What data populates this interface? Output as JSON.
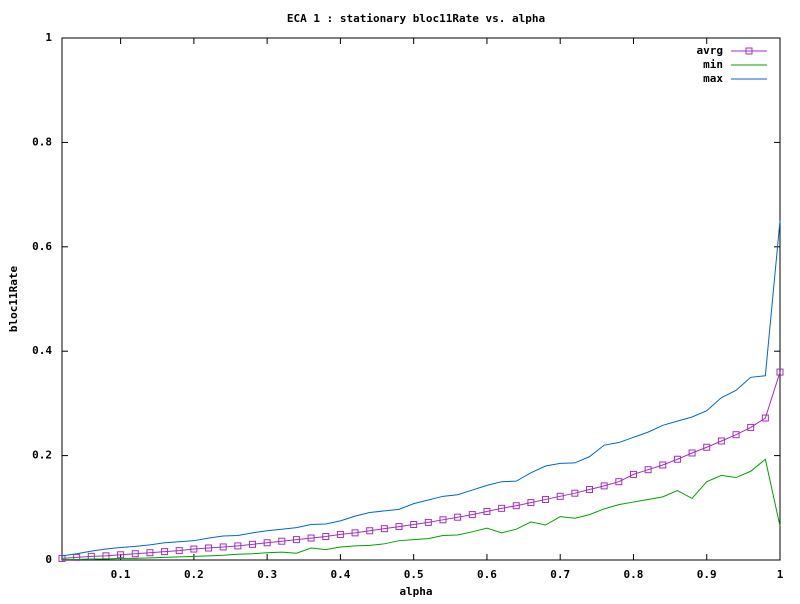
{
  "chart_data": {
    "type": "line",
    "title": "ECA 1 : stationary bloc11Rate vs. alpha",
    "x_label": "alpha",
    "y_label": "bloc11Rate",
    "x": [
      0.02,
      0.04,
      0.06,
      0.08,
      0.1,
      0.12,
      0.14,
      0.16,
      0.18,
      0.2,
      0.22,
      0.24,
      0.26,
      0.28,
      0.3,
      0.32,
      0.34,
      0.36,
      0.38,
      0.4,
      0.42,
      0.44,
      0.46,
      0.48,
      0.5,
      0.52,
      0.54,
      0.56,
      0.58,
      0.6,
      0.62,
      0.64,
      0.66,
      0.68,
      0.7,
      0.72,
      0.74,
      0.76,
      0.78,
      0.8,
      0.82,
      0.84,
      0.86,
      0.88,
      0.9,
      0.92,
      0.94,
      0.96,
      0.98,
      1
    ],
    "series": [
      {
        "name": "avrg",
        "color": "#a030c0",
        "marker": "square",
        "values": [
          0.003,
          0.005,
          0.007,
          0.008,
          0.01,
          0.012,
          0.014,
          0.016,
          0.018,
          0.021,
          0.023,
          0.025,
          0.027,
          0.03,
          0.033,
          0.036,
          0.039,
          0.042,
          0.045,
          0.049,
          0.052,
          0.056,
          0.06,
          0.064,
          0.068,
          0.072,
          0.077,
          0.082,
          0.087,
          0.093,
          0.099,
          0.104,
          0.11,
          0.116,
          0.122,
          0.128,
          0.135,
          0.142,
          0.15,
          0.164,
          0.173,
          0.182,
          0.193,
          0.205,
          0.216,
          0.228,
          0.24,
          0.254,
          0.272,
          0.36
        ]
      },
      {
        "name": "min",
        "color": "#00a000",
        "values": [
          0.001,
          0.001,
          0.002,
          0.002,
          0.003,
          0.003,
          0.004,
          0.005,
          0.006,
          0.007,
          0.008,
          0.009,
          0.011,
          0.012,
          0.014,
          0.015,
          0.013,
          0.023,
          0.02,
          0.025,
          0.027,
          0.028,
          0.031,
          0.037,
          0.039,
          0.041,
          0.047,
          0.048,
          0.054,
          0.061,
          0.052,
          0.059,
          0.073,
          0.067,
          0.083,
          0.08,
          0.087,
          0.098,
          0.106,
          0.111,
          0.116,
          0.121,
          0.133,
          0.118,
          0.15,
          0.162,
          0.158,
          0.17,
          0.193,
          0.065
        ]
      },
      {
        "name": "max",
        "color": "#0066cc",
        "values": [
          0.008,
          0.012,
          0.017,
          0.021,
          0.024,
          0.026,
          0.029,
          0.033,
          0.035,
          0.037,
          0.042,
          0.046,
          0.047,
          0.052,
          0.056,
          0.059,
          0.062,
          0.068,
          0.069,
          0.075,
          0.084,
          0.091,
          0.094,
          0.097,
          0.108,
          0.115,
          0.122,
          0.125,
          0.134,
          0.143,
          0.15,
          0.151,
          0.167,
          0.18,
          0.185,
          0.186,
          0.198,
          0.22,
          0.225,
          0.235,
          0.245,
          0.258,
          0.266,
          0.274,
          0.286,
          0.311,
          0.325,
          0.35,
          0.353,
          0.65
        ]
      }
    ],
    "xlim": [
      0.02,
      1
    ],
    "xticks": [
      0.1,
      0.2,
      0.3,
      0.4,
      0.5,
      0.6,
      0.7,
      0.8,
      0.9,
      1
    ],
    "ylim": [
      0,
      1
    ],
    "yticks": [
      0,
      0.2,
      0.4,
      0.6,
      0.8,
      1
    ],
    "legend": "top-right"
  }
}
